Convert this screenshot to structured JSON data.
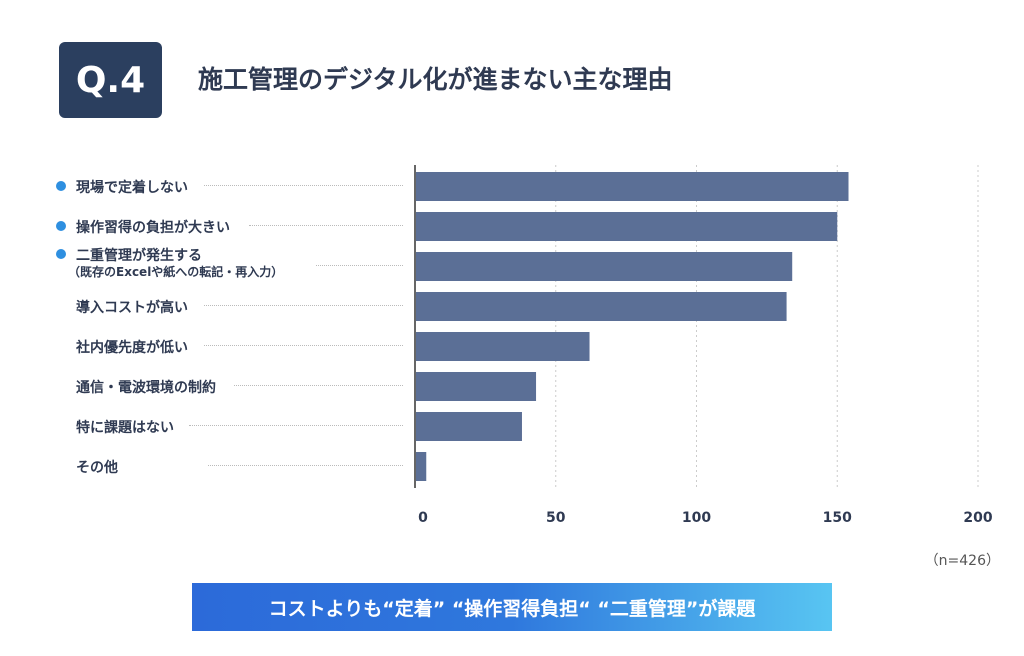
{
  "header": {
    "badge": "Q.4",
    "title": "施工管理のデジタル化が進まない主な理由"
  },
  "chart_data": {
    "type": "bar",
    "orientation": "horizontal",
    "categories": [
      "現場で定着しない",
      "操作習得の負担が大きい",
      "二重管理が発生する",
      "導入コストが高い",
      "社内優先度が低い",
      "通信・電波環境の制約",
      "特に課題はない",
      "その他"
    ],
    "category_notes": [
      "",
      "",
      "（既存のExcelや紙への転記・再入力）",
      "",
      "",
      "",
      "",
      ""
    ],
    "highlighted": [
      true,
      true,
      true,
      false,
      false,
      false,
      false,
      false
    ],
    "values": [
      154,
      150,
      134,
      132,
      62,
      43,
      38,
      4
    ],
    "xlim": [
      0,
      200
    ],
    "xticks": [
      0,
      50,
      100,
      150,
      200
    ],
    "grid": true,
    "bar_color": "#5b6f96",
    "highlight_color": "#2e8fe0"
  },
  "note": "（n=426）",
  "banner": "コストよりも“定着” “操作習得負担“ “二重管理”が課題"
}
